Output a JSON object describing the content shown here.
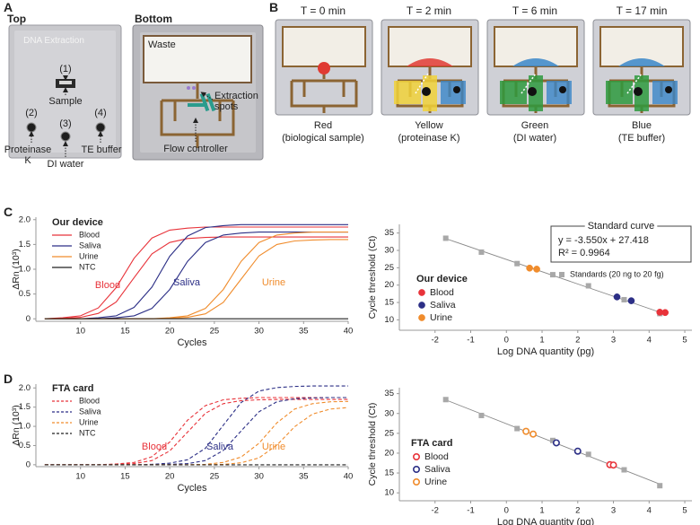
{
  "figure_labels": [
    "A",
    "B",
    "C",
    "D"
  ],
  "panel_a": {
    "top": "Top",
    "bottom": "Bottom",
    "chip_title": "DNA Extraction",
    "inlets": [
      {
        "number": "(1)",
        "name": "Sample"
      },
      {
        "number": "(2)",
        "name": "Proteinase K"
      },
      {
        "number": "(3)",
        "name": "DI water"
      },
      {
        "number": "(4)",
        "name": "TE buffer"
      }
    ],
    "bottom_labels": [
      "Waste",
      "Extraction spots",
      "Flow controller"
    ]
  },
  "panel_b": {
    "frames": [
      {
        "time": "T = 0 min",
        "color": "Red",
        "content": "(biological sample)"
      },
      {
        "time": "T = 2 min",
        "color": "Yellow",
        "content": "(proteinase K)"
      },
      {
        "time": "T = 6 min",
        "color": "Green",
        "content": "(DI water)"
      },
      {
        "time": "T = 17 min",
        "color": "Blue",
        "content": "(TE buffer)"
      }
    ]
  },
  "chart_data": [
    {
      "type": "line",
      "legend_title": "Our device",
      "xlabel": "Cycles",
      "ylabel": "ΔRn (10³)",
      "line_style": "solid",
      "series_labels": true,
      "xlim": [
        5,
        40
      ],
      "xticks": [
        10,
        15,
        20,
        25,
        30,
        35,
        40
      ],
      "ylim": [
        -0.05,
        2.05
      ],
      "yticks": [
        0,
        0.5,
        {
          "value": 1,
          "label": "1.0"
        },
        1.5,
        {
          "value": 2,
          "label": "2.0"
        }
      ],
      "x": [
        6,
        8,
        10,
        12,
        14,
        16,
        18,
        20,
        22,
        24,
        26,
        28,
        30,
        32,
        34,
        36,
        38,
        40
      ],
      "series": [
        {
          "name": "Blood",
          "color": "#e8333a",
          "values": [
            [
              0,
              0.02,
              0.06,
              0.22,
              0.63,
              1.22,
              1.63,
              1.79,
              1.83,
              1.85,
              1.85,
              1.85,
              1.85,
              1.85,
              1.85,
              1.85,
              1.85,
              1.85
            ],
            [
              0,
              0.01,
              0.03,
              0.11,
              0.34,
              0.83,
              1.31,
              1.54,
              1.62,
              1.64,
              1.65,
              1.65,
              1.65,
              1.65,
              1.65,
              1.65,
              1.65,
              1.65
            ]
          ]
        },
        {
          "name": "Saliva",
          "color": "#2c2f86",
          "values": [
            [
              0,
              0,
              0,
              0.02,
              0.06,
              0.23,
              0.64,
              1.26,
              1.67,
              1.84,
              1.88,
              1.9,
              1.9,
              1.9,
              1.9,
              1.9,
              1.9,
              1.9
            ],
            [
              0,
              0,
              0,
              0,
              0.02,
              0.06,
              0.21,
              0.59,
              1.16,
              1.54,
              1.69,
              1.73,
              1.75,
              1.75,
              1.75,
              1.75,
              1.75,
              1.75
            ]
          ]
        },
        {
          "name": "Urine",
          "color": "#f08c2c",
          "values": [
            [
              0,
              0,
              0,
              0,
              0,
              0,
              0,
              0.02,
              0.06,
              0.21,
              0.59,
              1.16,
              1.54,
              1.69,
              1.73,
              1.75,
              1.75,
              1.75
            ],
            [
              0,
              0,
              0,
              0,
              0,
              0,
              0,
              0.01,
              0.03,
              0.1,
              0.33,
              0.8,
              1.27,
              1.5,
              1.57,
              1.59,
              1.6,
              1.6
            ]
          ]
        },
        {
          "name": "NTC",
          "color": "#222222",
          "values": [
            [
              0,
              0,
              0,
              0,
              0,
              0,
              0,
              0,
              0,
              0,
              0,
              0,
              0,
              0,
              0,
              0,
              0,
              0
            ]
          ]
        }
      ]
    },
    {
      "type": "scatter",
      "legend_title": "Our device",
      "xlabel": "Log DNA quantity (pg)",
      "ylabel": "Cycle threshold (Ct)",
      "fit_line": true,
      "fit_box": {
        "title": "Standard curve",
        "equation": "y = -3.550x + 27.418",
        "r_squared": "R² = 0.9964"
      },
      "xlim": [
        -3,
        5.2
      ],
      "xticks": [
        -2,
        -1,
        0,
        1,
        2,
        3,
        4,
        5
      ],
      "ylim": [
        7,
        37.5
      ],
      "yticks": [
        10,
        15,
        20,
        25,
        30,
        35
      ],
      "series": [
        {
          "name": "Standards (20 ng to 20 fg)",
          "color": "#a8a8a8",
          "marker": "square",
          "x": [
            -1.7,
            -0.7,
            0.3,
            1.3,
            2.3,
            3.3,
            4.3
          ],
          "values": [
            33.5,
            29.5,
            26.2,
            23.0,
            19.8,
            15.8,
            11.8
          ]
        },
        {
          "name": "Blood",
          "color": "#e8333a",
          "marker": "filled",
          "x": [
            4.3,
            4.45
          ],
          "values": [
            12.2,
            12.1
          ]
        },
        {
          "name": "Saliva",
          "color": "#2c2f86",
          "marker": "filled",
          "x": [
            3.1,
            3.5
          ],
          "values": [
            16.6,
            15.5
          ]
        },
        {
          "name": "Urine",
          "color": "#f08c2c",
          "marker": "filled",
          "x": [
            0.65,
            0.85
          ],
          "values": [
            24.9,
            24.6
          ]
        }
      ]
    },
    {
      "type": "line",
      "legend_title": "FTA card",
      "xlabel": "Cycles",
      "ylabel": "ΔRn (10³)",
      "line_style": "dashed",
      "series_labels": true,
      "xlim": [
        5,
        40
      ],
      "xticks": [
        10,
        15,
        20,
        25,
        30,
        35,
        40
      ],
      "ylim": [
        -0.05,
        2.1
      ],
      "yticks": [
        0,
        0.5,
        {
          "value": 1,
          "label": "1.0"
        },
        1.5,
        {
          "value": 2,
          "label": "2.0"
        }
      ],
      "x": [
        6,
        8,
        10,
        12,
        14,
        16,
        18,
        20,
        22,
        24,
        26,
        28,
        30,
        32,
        34,
        36,
        38,
        40
      ],
      "series": [
        {
          "name": "Blood",
          "color": "#e8333a",
          "values": [
            [
              0,
              0,
              0,
              0,
              0.02,
              0.06,
              0.21,
              0.59,
              1.16,
              1.54,
              1.69,
              1.73,
              1.75,
              1.75,
              1.75,
              1.75,
              1.75,
              1.75
            ],
            [
              0,
              0,
              0,
              0,
              0.01,
              0.03,
              0.11,
              0.36,
              0.85,
              1.34,
              1.59,
              1.67,
              1.69,
              1.7,
              1.7,
              1.7,
              1.7,
              1.7
            ]
          ]
        },
        {
          "name": "Saliva",
          "color": "#2c2f86",
          "values": [
            [
              0,
              0,
              0,
              0,
              0,
              0,
              0.01,
              0.04,
              0.13,
              0.43,
              1.03,
              1.62,
              1.92,
              2.01,
              2.04,
              2.05,
              2.05,
              2.05
            ],
            [
              0,
              0,
              0,
              0,
              0,
              0,
              0,
              0.01,
              0.03,
              0.11,
              0.37,
              0.88,
              1.38,
              1.64,
              1.72,
              1.74,
              1.75,
              1.75
            ]
          ]
        },
        {
          "name": "Urine",
          "color": "#f08c2c",
          "values": [
            [
              0,
              0,
              0,
              0,
              0,
              0,
              0,
              0,
              0,
              0.01,
              0.06,
              0.2,
              0.56,
              1.09,
              1.45,
              1.59,
              1.64,
              1.65
            ],
            [
              0,
              0,
              0,
              0,
              0,
              0,
              0,
              0,
              0,
              0,
              0.01,
              0.05,
              0.18,
              0.51,
              0.99,
              1.32,
              1.45,
              1.49
            ]
          ]
        },
        {
          "name": "NTC",
          "color": "#222222",
          "values": [
            [
              0,
              0,
              0,
              0,
              0,
              0,
              0,
              0,
              0,
              0,
              0,
              0,
              0,
              0,
              0,
              0,
              0,
              0
            ]
          ]
        }
      ]
    },
    {
      "type": "scatter",
      "legend_title": "FTA card",
      "xlabel": "Log DNA quantity (pg)",
      "ylabel": "Cycle threshold (Ct)",
      "fit_line": true,
      "xlim": [
        -3,
        5.2
      ],
      "xticks": [
        -2,
        -1,
        0,
        1,
        2,
        3,
        4,
        5
      ],
      "ylim": [
        8,
        36.5
      ],
      "yticks": [
        10,
        15,
        20,
        25,
        30,
        35
      ],
      "series": [
        {
          "color": "#a8a8a8",
          "marker": "square",
          "x": [
            -1.7,
            -0.7,
            0.3,
            1.3,
            2.3,
            3.3,
            4.3
          ],
          "values": [
            33.5,
            29.5,
            26.2,
            23.2,
            19.7,
            15.8,
            11.8
          ]
        },
        {
          "name": "Blood",
          "color": "#e8333a",
          "marker": "open",
          "x": [
            2.9,
            3.0
          ],
          "values": [
            17.1,
            17.0
          ]
        },
        {
          "name": "Saliva",
          "color": "#2c2f86",
          "marker": "open",
          "x": [
            1.4,
            2.0
          ],
          "values": [
            22.6,
            20.5
          ]
        },
        {
          "name": "Urine",
          "color": "#f08c2c",
          "marker": "open",
          "x": [
            0.55,
            0.75
          ],
          "values": [
            25.5,
            24.8
          ]
        }
      ]
    }
  ]
}
